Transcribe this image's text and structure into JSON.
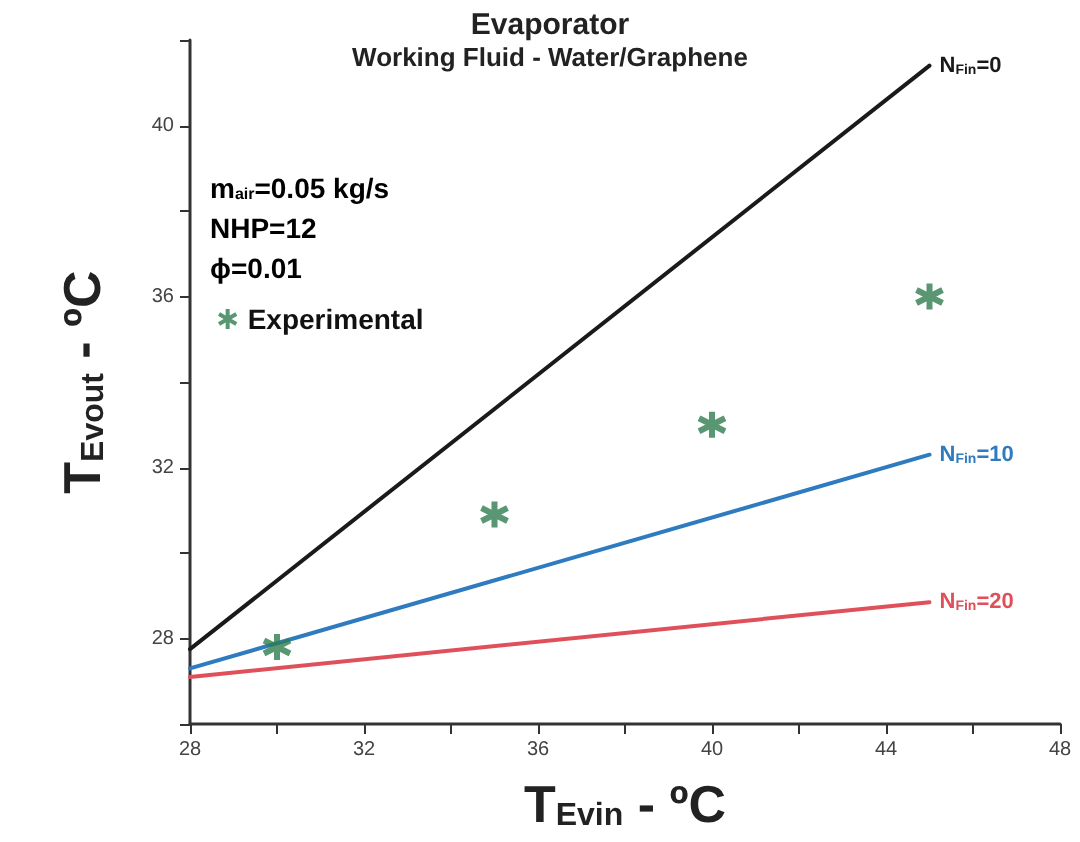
{
  "chart_data": {
    "type": "line",
    "title": "Evaporator",
    "subtitle": "Working Fluid - Water/Graphene",
    "xlabel": "T$_{Evin}$ - ºC",
    "ylabel": "T$_{Evout}$ - ºC",
    "annotations": [
      "m$_{air}$=0.05 kg/s",
      "NHP=12",
      "ϕ=0.01"
    ],
    "series": [
      {
        "name": "N$_{Fin}$=0",
        "color": "#1a1a1a",
        "x": [
          28,
          45
        ],
        "values": [
          27.75,
          41.4
        ]
      },
      {
        "name": "N$_{Fin}$=10",
        "color": "#2f7bbf",
        "x": [
          28,
          45
        ],
        "values": [
          27.3,
          32.3
        ]
      },
      {
        "name": "N$_{Fin}$=20",
        "color": "#e0505a",
        "x": [
          28,
          45
        ],
        "values": [
          27.1,
          28.85
        ]
      },
      {
        "name": "Experimental",
        "type": "scatter",
        "marker": "cross",
        "color": "#2e7d4f",
        "x": [
          30,
          35,
          40,
          45
        ],
        "values": [
          27.8,
          30.9,
          33.0,
          36.0
        ]
      }
    ],
    "xlim": [
      28,
      48
    ],
    "xticks": [
      28,
      {
        "value": 30,
        "label": null
      },
      32,
      {
        "value": 34,
        "label": null
      },
      36,
      {
        "value": 38,
        "label": null
      },
      40,
      {
        "value": 42,
        "label": null
      },
      44,
      {
        "value": 46,
        "label": null
      },
      48
    ],
    "ylim": [
      26,
      42
    ],
    "yticks": [
      {
        "value": 26,
        "label": null
      },
      28,
      {
        "value": 30,
        "label": null
      },
      32,
      {
        "value": 34,
        "label": null
      },
      36,
      {
        "value": 38,
        "label": null
      },
      40,
      {
        "value": 42,
        "label": null
      }
    ],
    "grid": false,
    "legend": "top left",
    "marker": "none",
    "line_style": "solid"
  }
}
